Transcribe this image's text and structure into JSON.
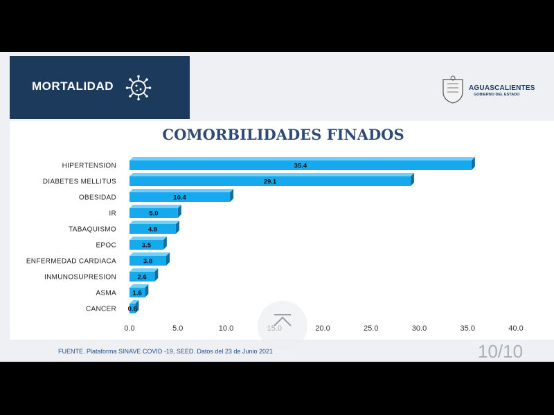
{
  "header": {
    "banner_title": "MORTALIDAD",
    "logo_name": "AGUASCALIENTES",
    "logo_subtitle": "GOBIERNO DEL ESTADO"
  },
  "footer": {
    "source": "FUENTE. Plataforma SINAVE COVID -19, SEED. Datos del 23 de Junio 2021",
    "page_counter": "10/10"
  },
  "colors": {
    "banner": "#1b3a5c",
    "bar_face": "#17a9ee",
    "bar_side": "#0d6fa3",
    "bar_top": "#6fd0f8",
    "title": "#2e4a73"
  },
  "icons": [
    "virus-icon",
    "coat-of-arms-logo",
    "chevron-up-icon"
  ],
  "chart_data": {
    "type": "bar",
    "orientation": "horizontal",
    "title": "COMORBILIDADES FINADOS",
    "categories": [
      "HIPERTENSION",
      "DIABETES MELLITUS",
      "OBESIDAD",
      "IR",
      "TABAQUISMO",
      "EPOC",
      "ENFERMEDAD CARDIACA",
      "INMUNOSUPRESION",
      "ASMA",
      "CANCER"
    ],
    "values": [
      35.4,
      29.1,
      10.4,
      5.0,
      4.8,
      3.5,
      3.8,
      2.6,
      1.6,
      0.6
    ],
    "value_labels": [
      "35.4",
      "29.1",
      "10.4",
      "5.0",
      "4.8",
      "3.5",
      "3.8",
      "2.6",
      "1.6",
      "0.6"
    ],
    "xlim": [
      0,
      40
    ],
    "xticks": [
      "0.0",
      "5.0",
      "10.0",
      "15.0",
      "20.0",
      "25.0",
      "30.0",
      "35.0",
      "40.0"
    ],
    "xlabel": "",
    "ylabel": "",
    "grid": false,
    "legend": "none"
  }
}
